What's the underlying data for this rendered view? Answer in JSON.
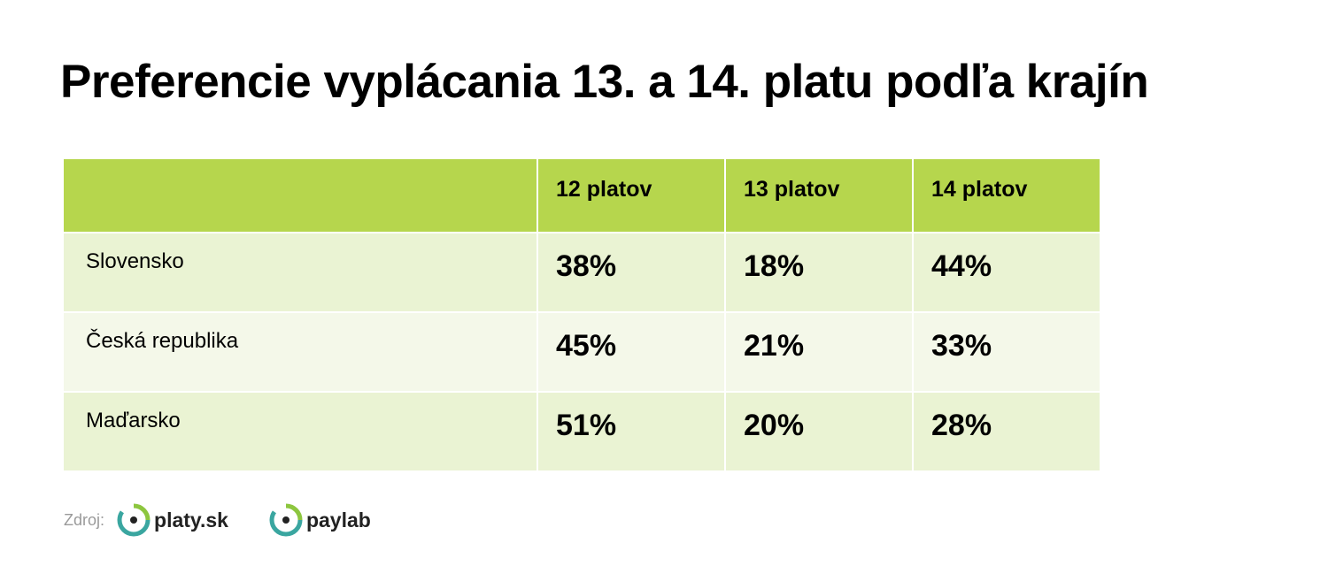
{
  "header": {
    "title": "Preferencie vyplácania 13. a 14. platu podľa krajín"
  },
  "table": {
    "columns": [
      "12 platov",
      "13 platov",
      "14 platov"
    ],
    "rows": [
      [
        "Slovensko",
        "38%",
        "18%",
        "44%"
      ],
      [
        "Česká republika",
        "45%",
        "21%",
        "33%"
      ],
      [
        "Maďarsko",
        "51%",
        "20%",
        "28%"
      ]
    ]
  },
  "footer": {
    "source_label": "Zdroj:",
    "logos": [
      "platy.sk",
      "paylab"
    ]
  }
}
